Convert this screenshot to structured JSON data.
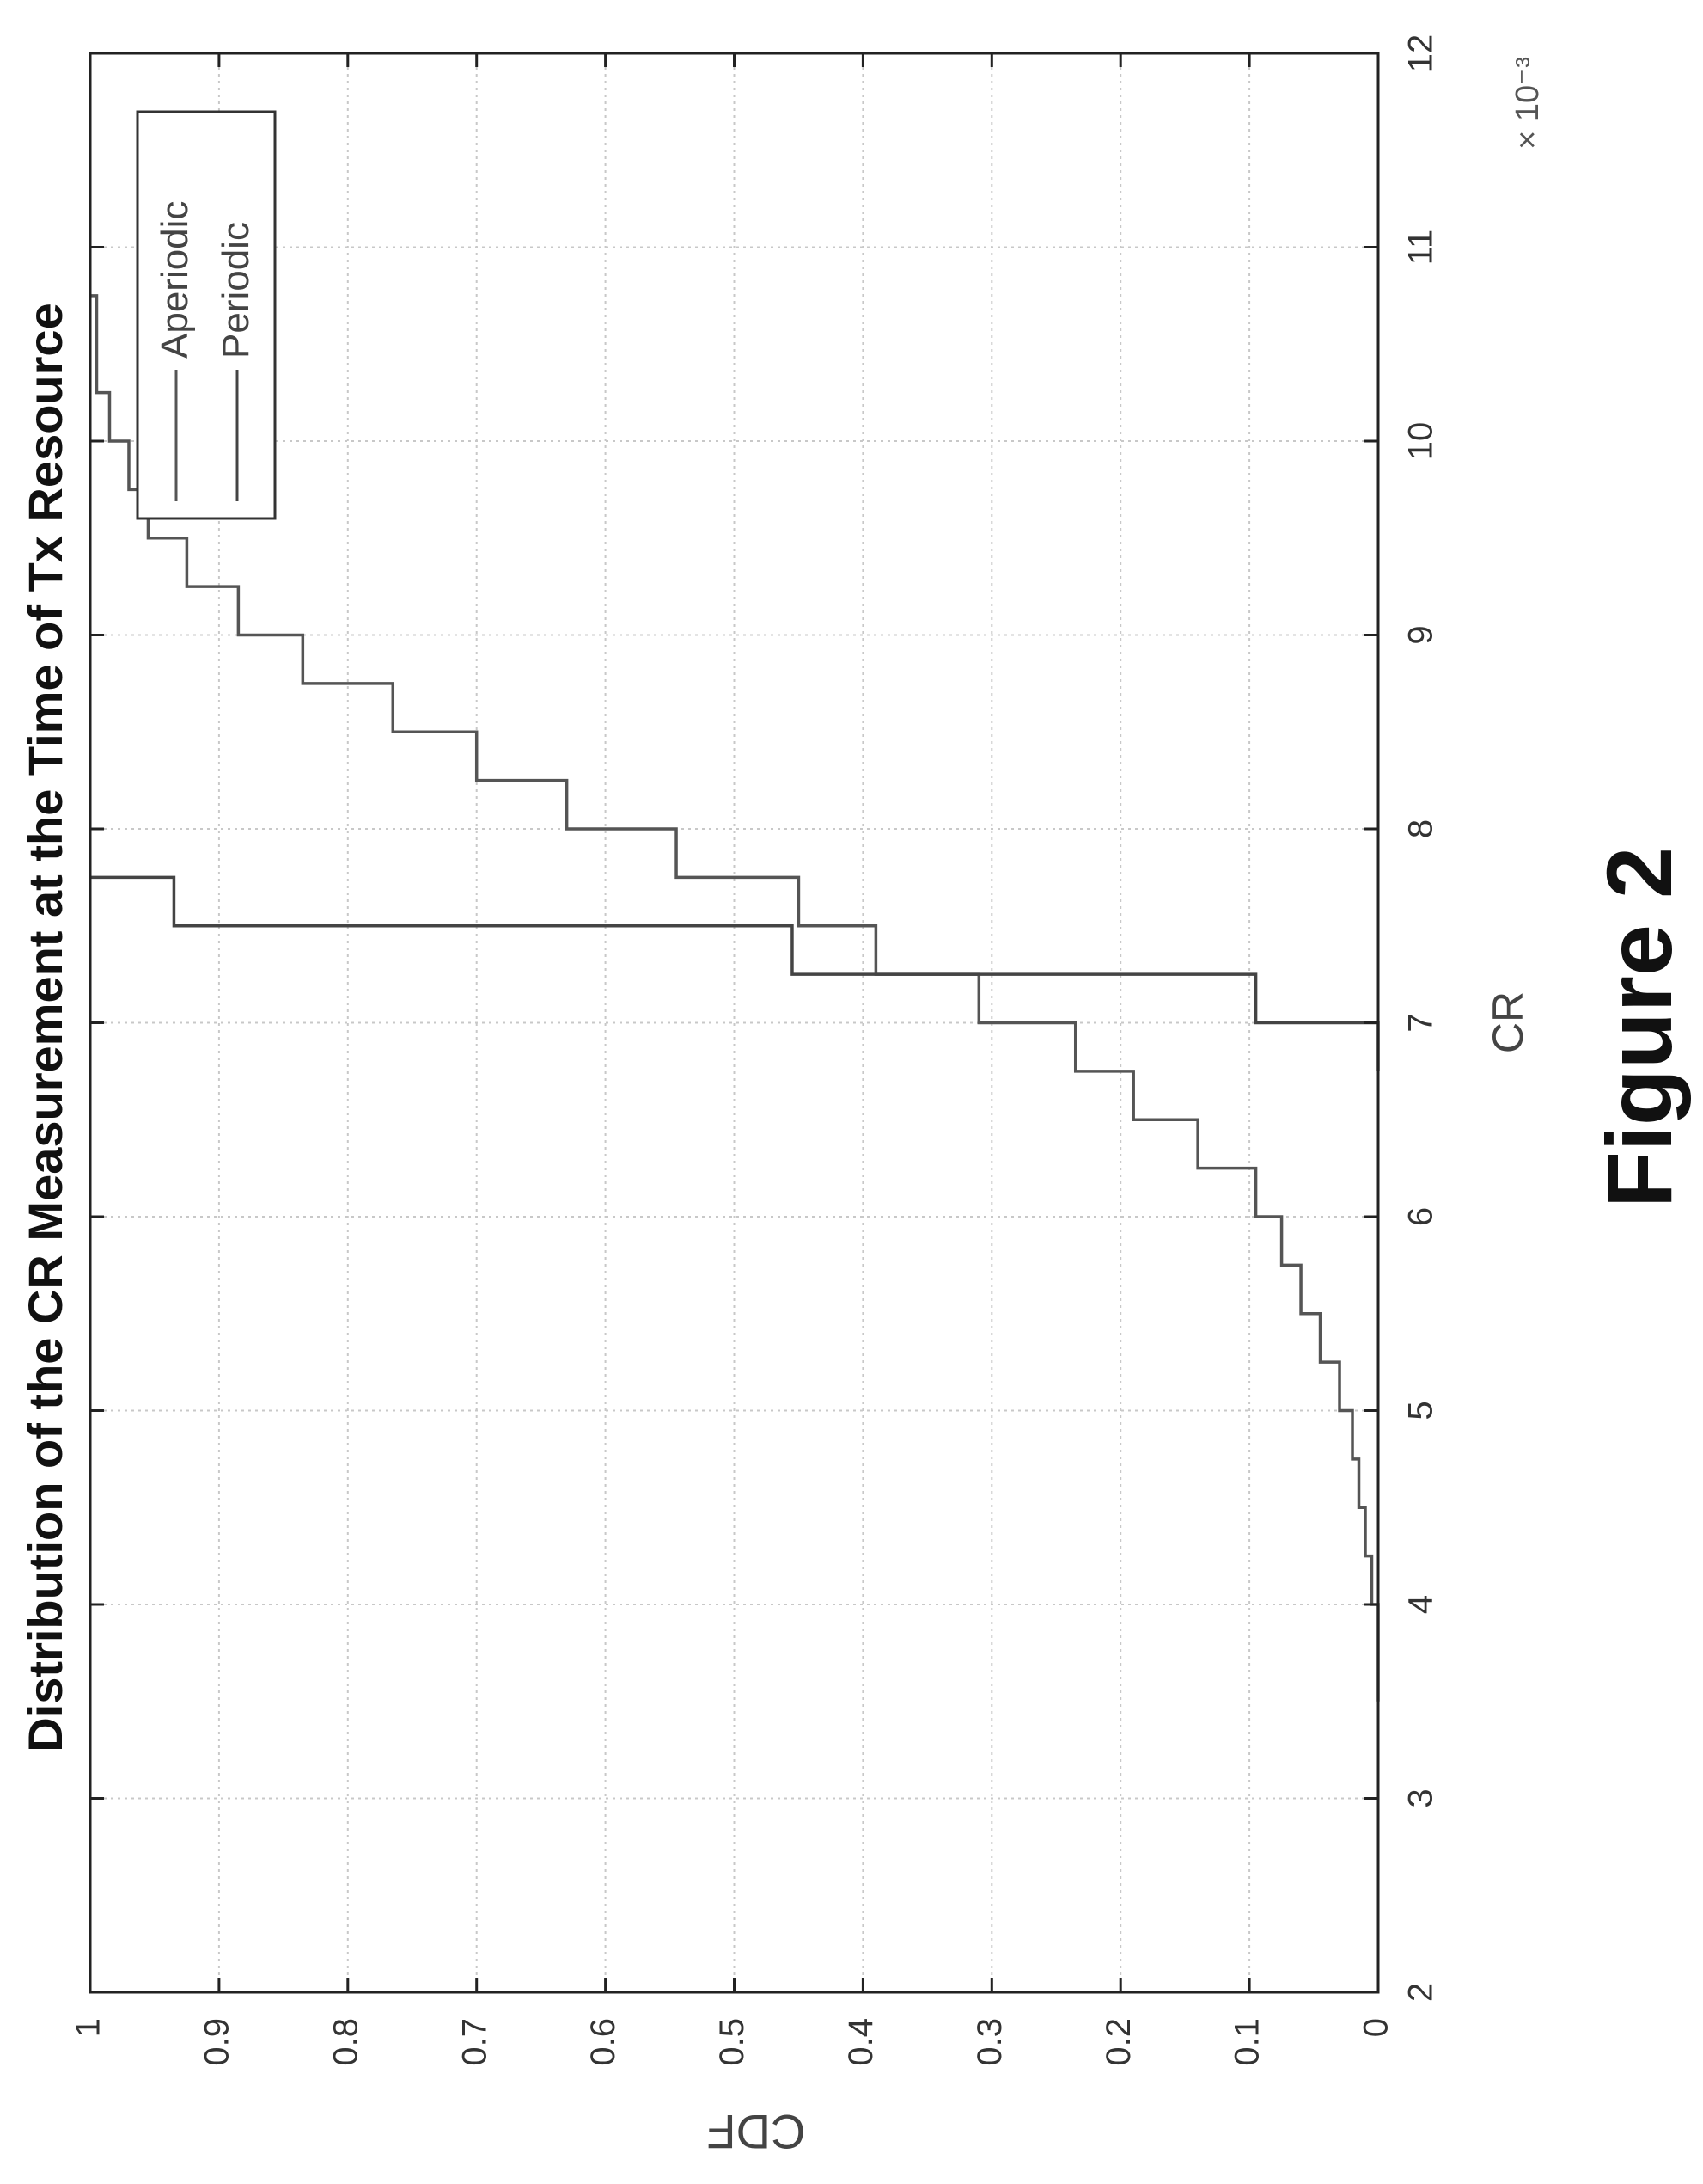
{
  "figure_label": "Figure 2",
  "chart_data": {
    "type": "line",
    "title": "Distribution of the CR Measurement at the Time of Tx Resource",
    "xlabel": "CR",
    "ylabel": "CDF",
    "x_scale_label": "× 10⁻³",
    "xlim": [
      2,
      12
    ],
    "ylim": [
      0,
      1
    ],
    "xticks": [
      2,
      3,
      4,
      5,
      6,
      7,
      8,
      9,
      10,
      11,
      12
    ],
    "yticks": [
      0,
      0.1,
      0.2,
      0.3,
      0.4,
      0.5,
      0.6,
      0.7,
      0.8,
      0.9,
      1
    ],
    "grid": true,
    "legend_position": "top-right",
    "series": [
      {
        "name": "Aperiodic",
        "step": true,
        "color": "#555555",
        "x": [
          3.5,
          4.0,
          4.25,
          4.5,
          4.75,
          5.0,
          5.25,
          5.5,
          5.75,
          6.0,
          6.25,
          6.5,
          6.75,
          7.0,
          7.25,
          7.5,
          7.75,
          8.0,
          8.25,
          8.5,
          8.75,
          9.0,
          9.25,
          9.5,
          9.75,
          10.0,
          10.25,
          10.75
        ],
        "y": [
          0.0,
          0.005,
          0.01,
          0.015,
          0.02,
          0.03,
          0.045,
          0.06,
          0.075,
          0.095,
          0.14,
          0.19,
          0.235,
          0.31,
          0.39,
          0.45,
          0.545,
          0.63,
          0.7,
          0.765,
          0.835,
          0.885,
          0.925,
          0.955,
          0.97,
          0.985,
          0.995,
          1.0
        ]
      },
      {
        "name": "Periodic",
        "step": true,
        "color": "#444444",
        "x": [
          6.75,
          7.0,
          7.25,
          7.5,
          7.75
        ],
        "y": [
          0.0,
          0.095,
          0.455,
          0.935,
          1.0
        ]
      }
    ]
  }
}
